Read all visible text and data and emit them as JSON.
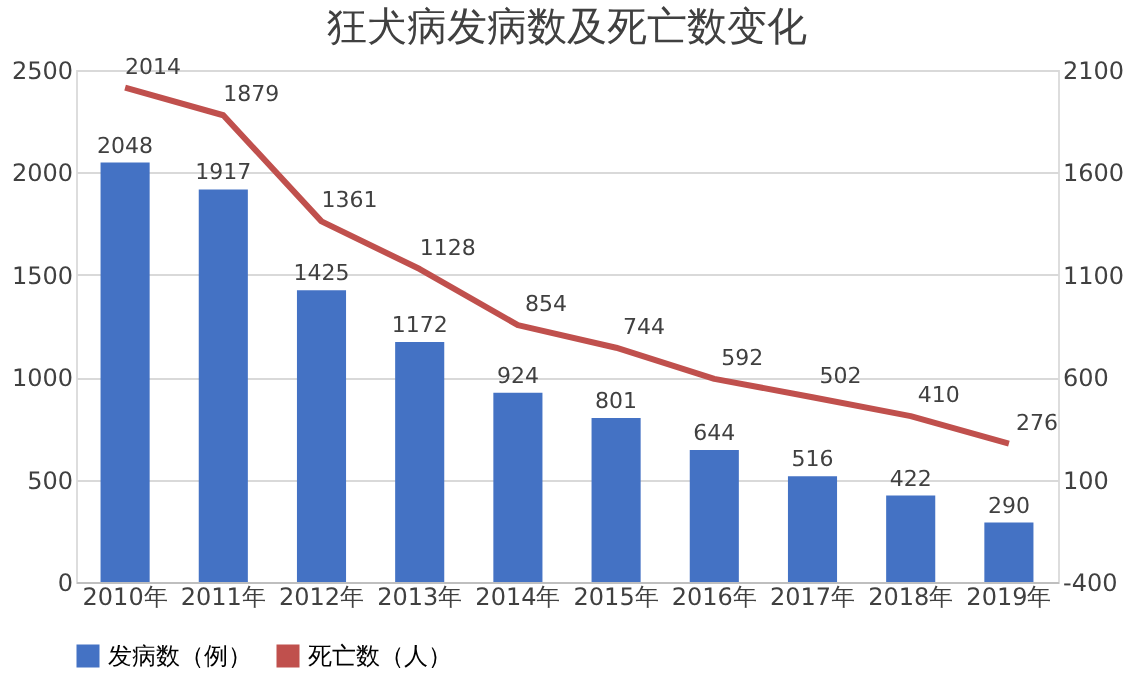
{
  "chart_data": {
    "type": "bar",
    "title": "狂犬病发病数及死亡数变化",
    "categories": [
      "2010年",
      "2011年",
      "2012年",
      "2013年",
      "2014年",
      "2015年",
      "2016年",
      "2017年",
      "2018年",
      "2019年"
    ],
    "series": [
      {
        "name": "发病数（例）",
        "color": "#4472c4",
        "values": [
          2048,
          1917,
          1425,
          1172,
          924,
          801,
          644,
          516,
          422,
          290
        ]
      },
      {
        "name": "死亡数（人）",
        "color": "#c0504d",
        "type": "line",
        "axis": "y2",
        "values": [
          2014,
          1879,
          1361,
          1128,
          854,
          744,
          592,
          502,
          410,
          276
        ]
      }
    ],
    "ylim": [
      0,
      2500
    ],
    "yticks": [
      0,
      500,
      1000,
      1500,
      2000,
      2500
    ],
    "y2lim": [
      -400,
      2100
    ],
    "y2ticks": [
      -400,
      100,
      600,
      1100,
      1600,
      2100
    ],
    "grid": "y",
    "legend": "bottom",
    "data_labels": true,
    "marker": "none",
    "line_style": "solid"
  }
}
